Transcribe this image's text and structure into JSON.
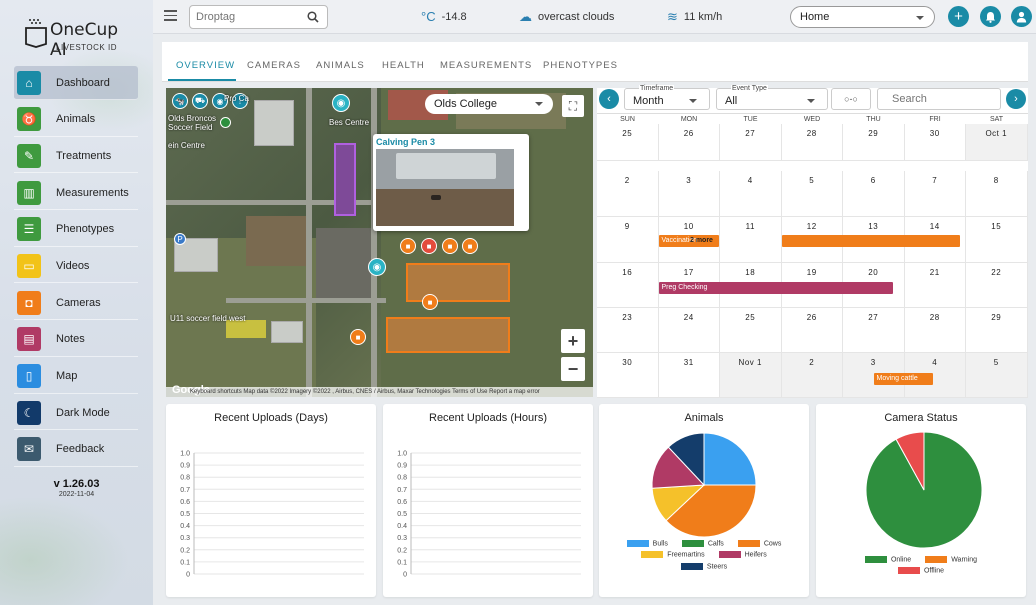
{
  "app": {
    "name": "OneCup AI",
    "subtitle": "LIVESTOCK ID",
    "version": "v 1.26.03",
    "version_date": "2022-11-04"
  },
  "sidebar": {
    "items": [
      {
        "label": "Dashboard",
        "icon": "home-icon",
        "color": "#1a8ba6",
        "active": true
      },
      {
        "label": "Animals",
        "icon": "cow-icon",
        "color": "#3f9a3f"
      },
      {
        "label": "Treatments",
        "icon": "syringe-icon",
        "color": "#3f9a3f"
      },
      {
        "label": "Measurements",
        "icon": "bar-chart-icon",
        "color": "#3f9a3f"
      },
      {
        "label": "Phenotypes",
        "icon": "list-icon",
        "color": "#3f9a3f"
      },
      {
        "label": "Videos",
        "icon": "video-icon",
        "color": "#f2c318"
      },
      {
        "label": "Cameras",
        "icon": "camera-icon",
        "color": "#f07d1a"
      },
      {
        "label": "Notes",
        "icon": "notes-icon",
        "color": "#b03a65"
      },
      {
        "label": "Map",
        "icon": "map-icon",
        "color": "#2b8de0"
      },
      {
        "label": "Dark Mode",
        "icon": "moon-icon",
        "color": "#123a6a"
      },
      {
        "label": "Feedback",
        "icon": "chat-icon",
        "color": "#3c5a6e"
      }
    ]
  },
  "header": {
    "search_placeholder": "Droptag",
    "temperature_unit": "°C",
    "temperature": "-14.8",
    "weather": "overcast clouds",
    "wind": "11 km/h",
    "location": "Home"
  },
  "tabs": [
    "OVERVIEW",
    "CAMERAS",
    "ANIMALS",
    "HEALTH",
    "MEASUREMENTS",
    "PHENOTYPES"
  ],
  "map": {
    "location_select": "Olds College",
    "popup_title": "Calving Pen 3",
    "labels": {
      "soccer": "Olds Broncos\nSoccer Field",
      "centre": "ein Centre",
      "bes": "Bes Centre",
      "u11": "U11 soccer field west",
      "pro": "Pro Ca"
    },
    "google": "Google",
    "footer": "Keyboard shortcuts    Map data ©2022 Imagery ©2022 , Airbus, CNES / Airbus, Maxar Technologies    Terms of Use    Report a map error"
  },
  "calendar": {
    "timeframe_label": "Timeframe",
    "timeframe": "Month",
    "event_type_label": "Event Type",
    "event_type": "All",
    "search_placeholder": "Search",
    "days_of_week": [
      "SUN",
      "MON",
      "TUE",
      "WED",
      "THU",
      "FRI",
      "SAT"
    ],
    "weeks": [
      [
        "25",
        "26",
        "27",
        "28",
        "29",
        "30",
        "Oct 1"
      ],
      [
        "2",
        "3",
        "4",
        "5",
        "6",
        "7",
        "8"
      ],
      [
        "9",
        "10",
        "11",
        "12",
        "13",
        "14",
        "15"
      ],
      [
        "16",
        "17",
        "18",
        "19",
        "20",
        "21",
        "22"
      ],
      [
        "23",
        "24",
        "25",
        "26",
        "27",
        "28",
        "29"
      ],
      [
        "30",
        "31",
        "Nov 1",
        "2",
        "3",
        "4",
        "5"
      ]
    ],
    "events": [
      {
        "label": "Vaccination",
        "color": "#f07d1a"
      },
      {
        "label": "",
        "color": "#f07d1a"
      },
      {
        "label": "Preg Checking",
        "color": "#b03a65"
      },
      {
        "label": "Moving cattle",
        "color": "#f07d1a"
      }
    ],
    "more_label": "2 more"
  },
  "cards": {
    "recent_days": {
      "title": "Recent Uploads (Days)"
    },
    "recent_hours": {
      "title": "Recent Uploads (Hours)"
    },
    "animals": {
      "title": "Animals"
    },
    "camera_status": {
      "title": "Camera Status"
    }
  },
  "chart_data": [
    {
      "type": "line",
      "title": "Recent Uploads (Days)",
      "y_ticks": [
        "1.0",
        "0.9",
        "0.8",
        "0.7",
        "0.6",
        "0.5",
        "0.4",
        "0.3",
        "0.2",
        "0.1",
        "0"
      ],
      "ylim": [
        0,
        1
      ],
      "series": []
    },
    {
      "type": "line",
      "title": "Recent Uploads (Hours)",
      "y_ticks": [
        "1.0",
        "0.9",
        "0.8",
        "0.7",
        "0.6",
        "0.5",
        "0.4",
        "0.3",
        "0.2",
        "0.1",
        "0"
      ],
      "ylim": [
        0,
        1
      ],
      "series": []
    },
    {
      "type": "pie",
      "title": "Animals",
      "slices": [
        {
          "name": "Bulls",
          "value": 25,
          "color": "#3aa0f0"
        },
        {
          "name": "Calfs",
          "value": 0,
          "color": "#2e8f3e"
        },
        {
          "name": "Cows",
          "value": 38,
          "color": "#f07d1a"
        },
        {
          "name": "Freemartins",
          "value": 11,
          "color": "#f5c12a"
        },
        {
          "name": "Heifers",
          "value": 14,
          "color": "#b03a65"
        },
        {
          "name": "Steers",
          "value": 12,
          "color": "#143d6b"
        }
      ]
    },
    {
      "type": "pie",
      "title": "Camera Status",
      "slices": [
        {
          "name": "Online",
          "value": 92,
          "color": "#2e8f3e"
        },
        {
          "name": "Warning",
          "value": 0,
          "color": "#f07d1a"
        },
        {
          "name": "Offline",
          "value": 8,
          "color": "#e84c4c"
        }
      ]
    }
  ]
}
